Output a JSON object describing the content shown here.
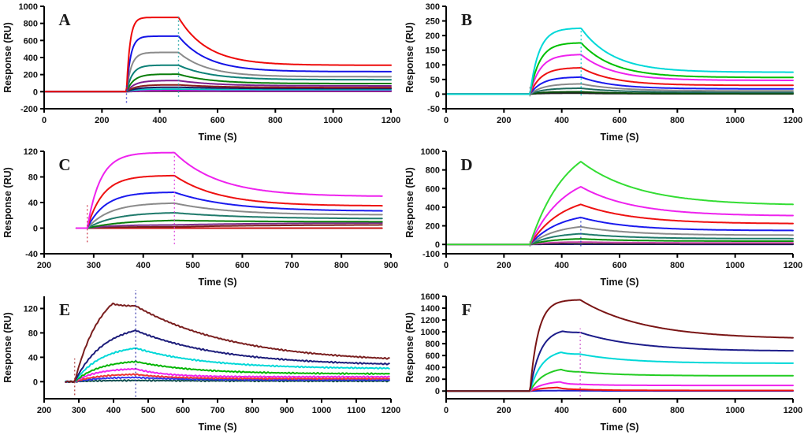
{
  "figure": {
    "description": "Six-panel SPR sensorgram figure"
  },
  "chart_data": [
    {
      "type": "line",
      "label": "A",
      "xlabel": "Time (S)",
      "ylabel": "Response (RU)",
      "xlim": [
        0,
        1200
      ],
      "ylim": [
        -200,
        1000
      ],
      "xticks": [
        0,
        200,
        400,
        600,
        800,
        1000,
        1200
      ],
      "yticks": [
        -200,
        0,
        200,
        400,
        600,
        800,
        1000
      ],
      "assoc_start": 285,
      "assoc_end": 465,
      "data_start": 0,
      "data_end": 1200,
      "noise": 0,
      "series": [
        {
          "color": "#222222",
          "peak": 6,
          "end": 4,
          "kobs": 0.03,
          "kd": 0.01
        },
        {
          "color": "#cc00cc",
          "peak": 14,
          "end": 10,
          "kobs": 0.03,
          "kd": 0.01
        },
        {
          "color": "#00c8c8",
          "peak": 30,
          "end": 22,
          "kobs": 0.03,
          "kd": 0.008
        },
        {
          "color": "#17175e",
          "peak": 52,
          "end": 36,
          "kobs": 0.03,
          "kd": 0.006
        },
        {
          "color": "#8b1d1d",
          "peak": 80,
          "end": 48,
          "kobs": 0.032,
          "kd": 0.007
        },
        {
          "color": "#7d1f8d",
          "peak": 130,
          "end": 68,
          "kobs": 0.035,
          "kd": 0.008
        },
        {
          "color": "#0a7d0a",
          "peak": 205,
          "end": 95,
          "kobs": 0.04,
          "kd": 0.009
        },
        {
          "color": "#0c8077",
          "peak": 310,
          "end": 140,
          "kobs": 0.05,
          "kd": 0.009
        },
        {
          "color": "#8a8a8a",
          "peak": 460,
          "end": 175,
          "kobs": 0.06,
          "kd": 0.01
        },
        {
          "color": "#1414e6",
          "peak": 650,
          "end": 235,
          "kobs": 0.07,
          "kd": 0.01
        },
        {
          "color": "#ee0a0a",
          "peak": 870,
          "end": 310,
          "kobs": 0.085,
          "kd": 0.01
        }
      ],
      "artifacts": [
        {
          "t": 285,
          "lo": -130,
          "hi": 80,
          "color": "#2a2acc"
        },
        {
          "t": 465,
          "lo": -60,
          "hi": 885,
          "color": "#2aa7a7"
        }
      ]
    },
    {
      "type": "line",
      "label": "B",
      "xlabel": "Time (S)",
      "ylabel": "Response (RU)",
      "xlim": [
        0,
        1200
      ],
      "ylim": [
        -50,
        300
      ],
      "xticks": [
        0,
        200,
        400,
        600,
        800,
        1000,
        1200
      ],
      "yticks": [
        -50,
        0,
        50,
        100,
        150,
        200,
        250,
        300
      ],
      "assoc_start": 290,
      "assoc_end": 467,
      "data_start": 0,
      "data_end": 1200,
      "noise": 0,
      "series": [
        {
          "color": "#222222",
          "peak": 3,
          "end": 1,
          "kobs": 0.03,
          "kd": 0.008
        },
        {
          "color": "#0a4d0a",
          "peak": 8,
          "end": 2,
          "kobs": 0.025,
          "kd": 0.008
        },
        {
          "color": "#1f6b5e",
          "peak": 20,
          "end": 6,
          "kobs": 0.022,
          "kd": 0.008
        },
        {
          "color": "#8a8a8a",
          "peak": 35,
          "end": 11,
          "kobs": 0.022,
          "kd": 0.008
        },
        {
          "color": "#1a1aee",
          "peak": 58,
          "end": 18,
          "kobs": 0.024,
          "kd": 0.009
        },
        {
          "color": "#ee1111",
          "peak": 90,
          "end": 30,
          "kobs": 0.026,
          "kd": 0.009
        },
        {
          "color": "#ee22ee",
          "peak": 135,
          "end": 47,
          "kobs": 0.028,
          "kd": 0.009
        },
        {
          "color": "#00c000",
          "peak": 175,
          "end": 57,
          "kobs": 0.03,
          "kd": 0.009
        },
        {
          "color": "#00d8d8",
          "peak": 225,
          "end": 75,
          "kobs": 0.032,
          "kd": 0.009
        }
      ],
      "artifacts": [
        {
          "t": 290,
          "lo": -8,
          "hi": 30,
          "color": "#777777"
        },
        {
          "t": 467,
          "lo": -5,
          "hi": 222,
          "color": "#00c8c8"
        }
      ]
    },
    {
      "type": "line",
      "label": "C",
      "xlabel": "Time (S)",
      "ylabel": "Response (RU)",
      "xlim": [
        200,
        900
      ],
      "ylim": [
        -40,
        120
      ],
      "xticks": [
        200,
        300,
        400,
        500,
        600,
        700,
        800,
        900
      ],
      "yticks": [
        -40,
        0,
        40,
        80,
        120
      ],
      "assoc_start": 287,
      "assoc_end": 463,
      "data_start": 265,
      "data_end": 882,
      "noise": 0,
      "series": [
        {
          "color": "#cc1111",
          "peak": 0,
          "end": 0,
          "kobs": 0.02,
          "kd": 0.005
        },
        {
          "color": "#7a1f1f",
          "peak": 2,
          "end": 5,
          "kobs": 0.02,
          "kd": 0.005
        },
        {
          "color": "#7d2d8d",
          "peak": 5,
          "end": 8,
          "kobs": 0.02,
          "kd": 0.005
        },
        {
          "color": "#0a7d0a",
          "peak": 12,
          "end": 10,
          "kobs": 0.014,
          "kd": 0.006
        },
        {
          "color": "#1f7a6b",
          "peak": 24,
          "end": 15,
          "kobs": 0.018,
          "kd": 0.007
        },
        {
          "color": "#8a8a8a",
          "peak": 39,
          "end": 21,
          "kobs": 0.022,
          "kd": 0.009
        },
        {
          "color": "#1a1aee",
          "peak": 56,
          "end": 27,
          "kobs": 0.028,
          "kd": 0.009
        },
        {
          "color": "#ee1111",
          "peak": 82,
          "end": 35,
          "kobs": 0.032,
          "kd": 0.011
        },
        {
          "color": "#ee22ee",
          "peak": 118,
          "end": 50,
          "kobs": 0.038,
          "kd": 0.011
        }
      ],
      "artifacts": [
        {
          "t": 287,
          "lo": -22,
          "hi": 38,
          "color": "#cc3344"
        },
        {
          "t": 463,
          "lo": -25,
          "hi": 118,
          "color": "#dd44dd"
        }
      ]
    },
    {
      "type": "line",
      "label": "D",
      "xlabel": "Time (S)",
      "ylabel": "Response (RU)",
      "xlim": [
        0,
        1200
      ],
      "ylim": [
        -100,
        1000
      ],
      "xticks": [
        0,
        200,
        400,
        600,
        800,
        1000,
        1200
      ],
      "yticks": [
        -100,
        0,
        200,
        400,
        600,
        800,
        1000
      ],
      "assoc_start": 290,
      "assoc_end": 466,
      "data_start": 0,
      "data_end": 1200,
      "noise": 0,
      "series": [
        {
          "color": "#1111cc",
          "peak": 2,
          "end": 1,
          "kobs": 0.02,
          "kd": 0.006
        },
        {
          "color": "#222222",
          "peak": 6,
          "end": 3,
          "kobs": 0.02,
          "kd": 0.006
        },
        {
          "color": "#cc44aa",
          "peak": 26,
          "end": 16,
          "kobs": 0.015,
          "kd": 0.006
        },
        {
          "color": "#0a8d0a",
          "peak": 60,
          "end": 35,
          "kobs": 0.013,
          "kd": 0.006
        },
        {
          "color": "#1f7a6b",
          "peak": 115,
          "end": 62,
          "kobs": 0.012,
          "kd": 0.006
        },
        {
          "color": "#8a8a8a",
          "peak": 190,
          "end": 100,
          "kobs": 0.011,
          "kd": 0.006
        },
        {
          "color": "#1a1aee",
          "peak": 290,
          "end": 150,
          "kobs": 0.01,
          "kd": 0.006
        },
        {
          "color": "#ee1111",
          "peak": 430,
          "end": 225,
          "kobs": 0.009,
          "kd": 0.0055
        },
        {
          "color": "#ee22ee",
          "peak": 620,
          "end": 310,
          "kobs": 0.0085,
          "kd": 0.0055
        },
        {
          "color": "#33dd33",
          "peak": 890,
          "end": 430,
          "kobs": 0.008,
          "kd": 0.005
        }
      ],
      "artifacts": [
        {
          "t": 290,
          "lo": -25,
          "hi": 60,
          "color": "#888888"
        },
        {
          "t": 466,
          "lo": -20,
          "hi": 300,
          "color": "#3344cc"
        }
      ]
    },
    {
      "type": "line",
      "label": "E",
      "xlabel": "Time (S)",
      "ylabel": "Response (RU)",
      "xlim": [
        200,
        1200
      ],
      "ylim": [
        -28,
        140
      ],
      "xticks": [
        200,
        300,
        400,
        500,
        600,
        700,
        800,
        900,
        1000,
        1100,
        1200
      ],
      "yticks": [
        0,
        40,
        80,
        120
      ],
      "assoc_start": 288,
      "assoc_end": 464,
      "data_start": 262,
      "data_end": 1195,
      "noise": 1.1,
      "series": [
        {
          "color": "#0f4d4d",
          "peak": 2,
          "end": 1,
          "kobs": 0.015,
          "kd": 0.004
        },
        {
          "color": "#3333ee",
          "peak": 7,
          "end": 3,
          "kobs": 0.015,
          "kd": 0.008
        },
        {
          "color": "#ee3333",
          "peak": 12,
          "end": 5,
          "kobs": 0.015,
          "kd": 0.01
        },
        {
          "color": "#ee22ee",
          "peak": 21,
          "end": 8,
          "kobs": 0.016,
          "kd": 0.012
        },
        {
          "color": "#00b400",
          "peak": 33,
          "end": 13,
          "kobs": 0.014,
          "kd": 0.006
        },
        {
          "color": "#00d8d8",
          "peak": 55,
          "end": 22,
          "kobs": 0.013,
          "kd": 0.005
        },
        {
          "color": "#1c1c7a",
          "peak": 84,
          "end": 29,
          "kobs": 0.012,
          "kd": 0.004
        },
        {
          "color": "#7a1f1f",
          "peak": 128,
          "end": 38,
          "kobs": 0.013,
          "kd": 0.0035,
          "sag": 124,
          "sagfrac": 0.62
        }
      ],
      "artifacts": [
        {
          "t": 288,
          "lo": -22,
          "hi": 38,
          "color": "#aa3333"
        },
        {
          "t": 464,
          "lo": -25,
          "hi": 152,
          "color": "#3333aa"
        }
      ]
    },
    {
      "type": "line",
      "label": "F",
      "xlabel": "Time (S)",
      "ylabel": "Response (RU)",
      "xlim": [
        0,
        1200
      ],
      "ylim": [
        -130,
        1600
      ],
      "xticks": [
        0,
        200,
        400,
        600,
        800,
        1000,
        1200
      ],
      "yticks": [
        0,
        200,
        400,
        600,
        800,
        1000,
        1200,
        1400,
        1600
      ],
      "assoc_start": 290,
      "assoc_end": 464,
      "data_start": 0,
      "data_end": 1200,
      "noise": 0,
      "series": [
        {
          "color": "#2222cc",
          "peak": 8,
          "end": 2,
          "kobs": 0.02,
          "kd": 0.008,
          "sag": 5,
          "sagfrac": 0.6
        },
        {
          "color": "#ee1111",
          "peak": 60,
          "end": 10,
          "kobs": 0.022,
          "kd": 0.01,
          "sag": 26,
          "sagfrac": 0.55
        },
        {
          "color": "#ee22ee",
          "peak": 155,
          "end": 95,
          "kobs": 0.02,
          "kd": 0.01,
          "sag": 112,
          "sagfrac": 0.6
        },
        {
          "color": "#22cc22",
          "peak": 365,
          "end": 258,
          "kobs": 0.021,
          "kd": 0.007,
          "sag": 322,
          "sagfrac": 0.62
        },
        {
          "color": "#00d8d8",
          "peak": 655,
          "end": 470,
          "kobs": 0.024,
          "kd": 0.006,
          "sag": 622,
          "sagfrac": 0.62
        },
        {
          "color": "#1c1c8a",
          "peak": 1010,
          "end": 680,
          "kobs": 0.028,
          "kd": 0.005,
          "sag": 988,
          "sagfrac": 0.65
        },
        {
          "color": "#7a1515",
          "peak": 1540,
          "end": 900,
          "kobs": 0.035,
          "kd": 0.0045
        }
      ],
      "artifacts": [
        {
          "t": 464,
          "lo": -90,
          "hi": 1060,
          "color": "#cc55cc"
        }
      ]
    }
  ]
}
